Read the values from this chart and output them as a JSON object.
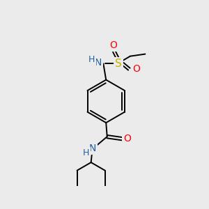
{
  "background_color": "#ebebeb",
  "bond_color": "#000000",
  "atom_colors": {
    "N": "#2060a0",
    "O": "#ff0000",
    "S": "#c8b400",
    "H": "#2060a0"
  },
  "figsize": [
    3.0,
    3.0
  ],
  "dpi": 100
}
